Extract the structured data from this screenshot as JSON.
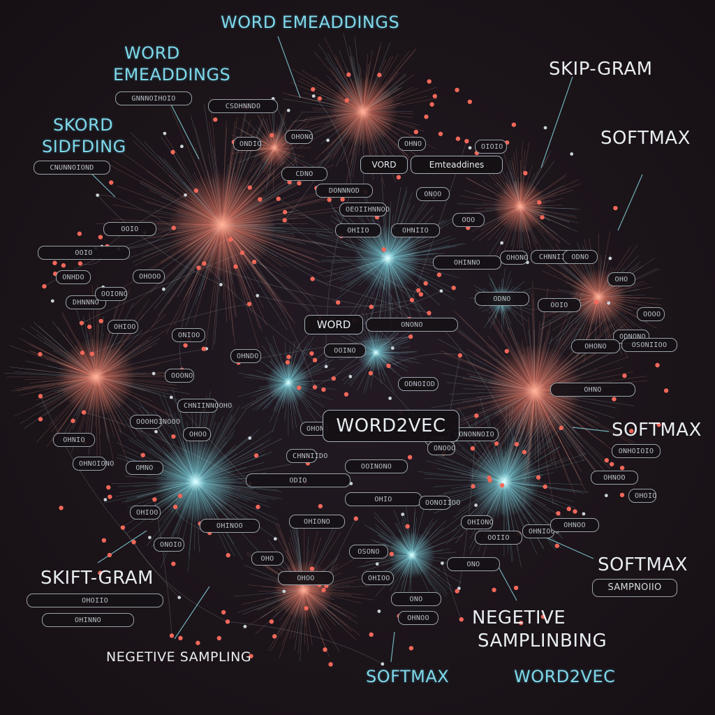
{
  "labels": {
    "top_center": "WORD EMEADDINGS",
    "top_left_line1": "WORD",
    "top_left_line2": "EMEADDINGS",
    "left_upper_line1": "SKORD",
    "left_upper_line2": "SIDFDING",
    "top_right": "SKIP-GRAM",
    "right_upper": "SOFTMAX",
    "center_box": "WORD2VEC",
    "right_middle": "SOFTMAX",
    "bottom_right_softmax": "SOFTMAX",
    "bottom_right_sub": "SAMPNOIIO",
    "bottom_left_skift": "SKIFT-GRAM",
    "bottom_left_negative": "NEGETIVE SAMPLING",
    "bottom_center_negative_line1": "NEGETIVE",
    "bottom_center_negative_line2": "SAMPLINBING",
    "bottom_softmax": "SOFTMAX",
    "bottom_word2vec": "WORD2VEC",
    "inner_word": "WORD",
    "inner_embeddings": "Emteaddines",
    "inner_vord": "VORD"
  },
  "pills": [
    "GNNNOIHOIO",
    "CSDHNNDO",
    "CNUNNOIOND",
    "CDNO",
    "DONNNOD",
    "OEOIIHNNOO",
    "OOIO",
    "OOIO",
    "ONHDO",
    "OHOOO",
    "OOO",
    "OHIIO",
    "OHNIIO",
    "DHNNNO",
    "OOIONO",
    "OHINNO",
    "OHONO",
    "CHNNIIO",
    "ODNO",
    "OOIO",
    "ODNO",
    "ODNONO",
    "OHONO",
    "OSONIIOO",
    "ONONO",
    "OOINO",
    "OOONO",
    "CHNIINNOOHO",
    "OOOHOINOOO",
    "ODNOIOD",
    "OHNO",
    "OHNIO",
    "OHNOIONO",
    "OMNO",
    "CHNNIIDO",
    "OOINONO",
    "ODIO",
    "OHNO",
    "OONONNOIO",
    "ONHOIOIO",
    "OHNOO",
    "OHIOO",
    "OHINOO",
    "OHIONO",
    "OHIO",
    "OONOIIOO",
    "OHIONO",
    "OHNIOOO",
    "OHNOO",
    "OHOIIO",
    "OHINNO",
    "ONO",
    "OHNOO",
    "OHIOO",
    "OHOO",
    "ONO",
    "OOIIO",
    "OSONO",
    "OHO",
    "ONOOO",
    "OHONO",
    "ONIOO",
    "OHNDO",
    "OHIOO",
    "OHO",
    "OOOO",
    "ONOO",
    "OHONO",
    "ONDIO",
    "OHNO",
    "OIOIO",
    "OHOO",
    "ONOIO",
    "OHOIO"
  ],
  "colors": {
    "background": "#1b1419",
    "cyan_accent": "#7fd8ea",
    "coral_node": "#f2685a",
    "edge": "#8a8f96"
  }
}
